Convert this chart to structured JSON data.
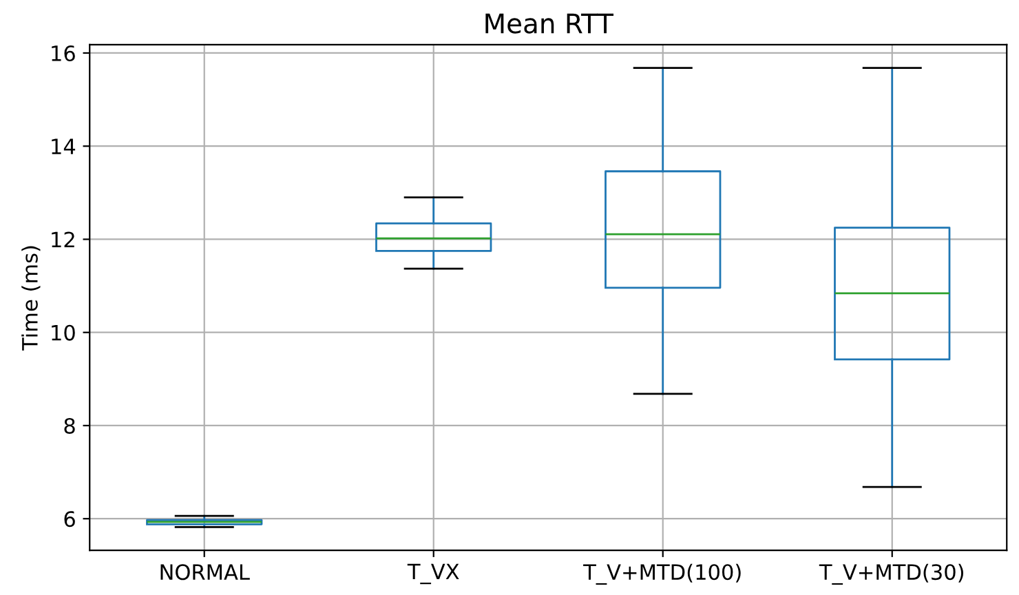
{
  "chart_data": {
    "type": "box",
    "title": "Mean RTT",
    "ylabel": "Time (ms)",
    "categories": [
      "NORMAL",
      "T_VX",
      "T_V+MTD(100)",
      "T_V+MTD(30)"
    ],
    "series": [
      {
        "color": "#1f77b4",
        "boxes": [
          {
            "low": 5.82,
            "q1": 5.88,
            "median": 5.93,
            "q3": 5.97,
            "high": 6.06
          },
          {
            "low": 11.37,
            "q1": 11.75,
            "median": 12.02,
            "q3": 12.34,
            "high": 12.9
          },
          {
            "low": 8.68,
            "q1": 10.96,
            "median": 12.11,
            "q3": 13.46,
            "high": 15.68
          },
          {
            "low": 6.68,
            "q1": 9.42,
            "median": 10.84,
            "q3": 12.25,
            "high": 15.68
          }
        ]
      }
    ],
    "ylim": [
      5.32,
      16.18
    ],
    "yticks": [
      6,
      8,
      10,
      12,
      14,
      16
    ],
    "grid": true
  }
}
